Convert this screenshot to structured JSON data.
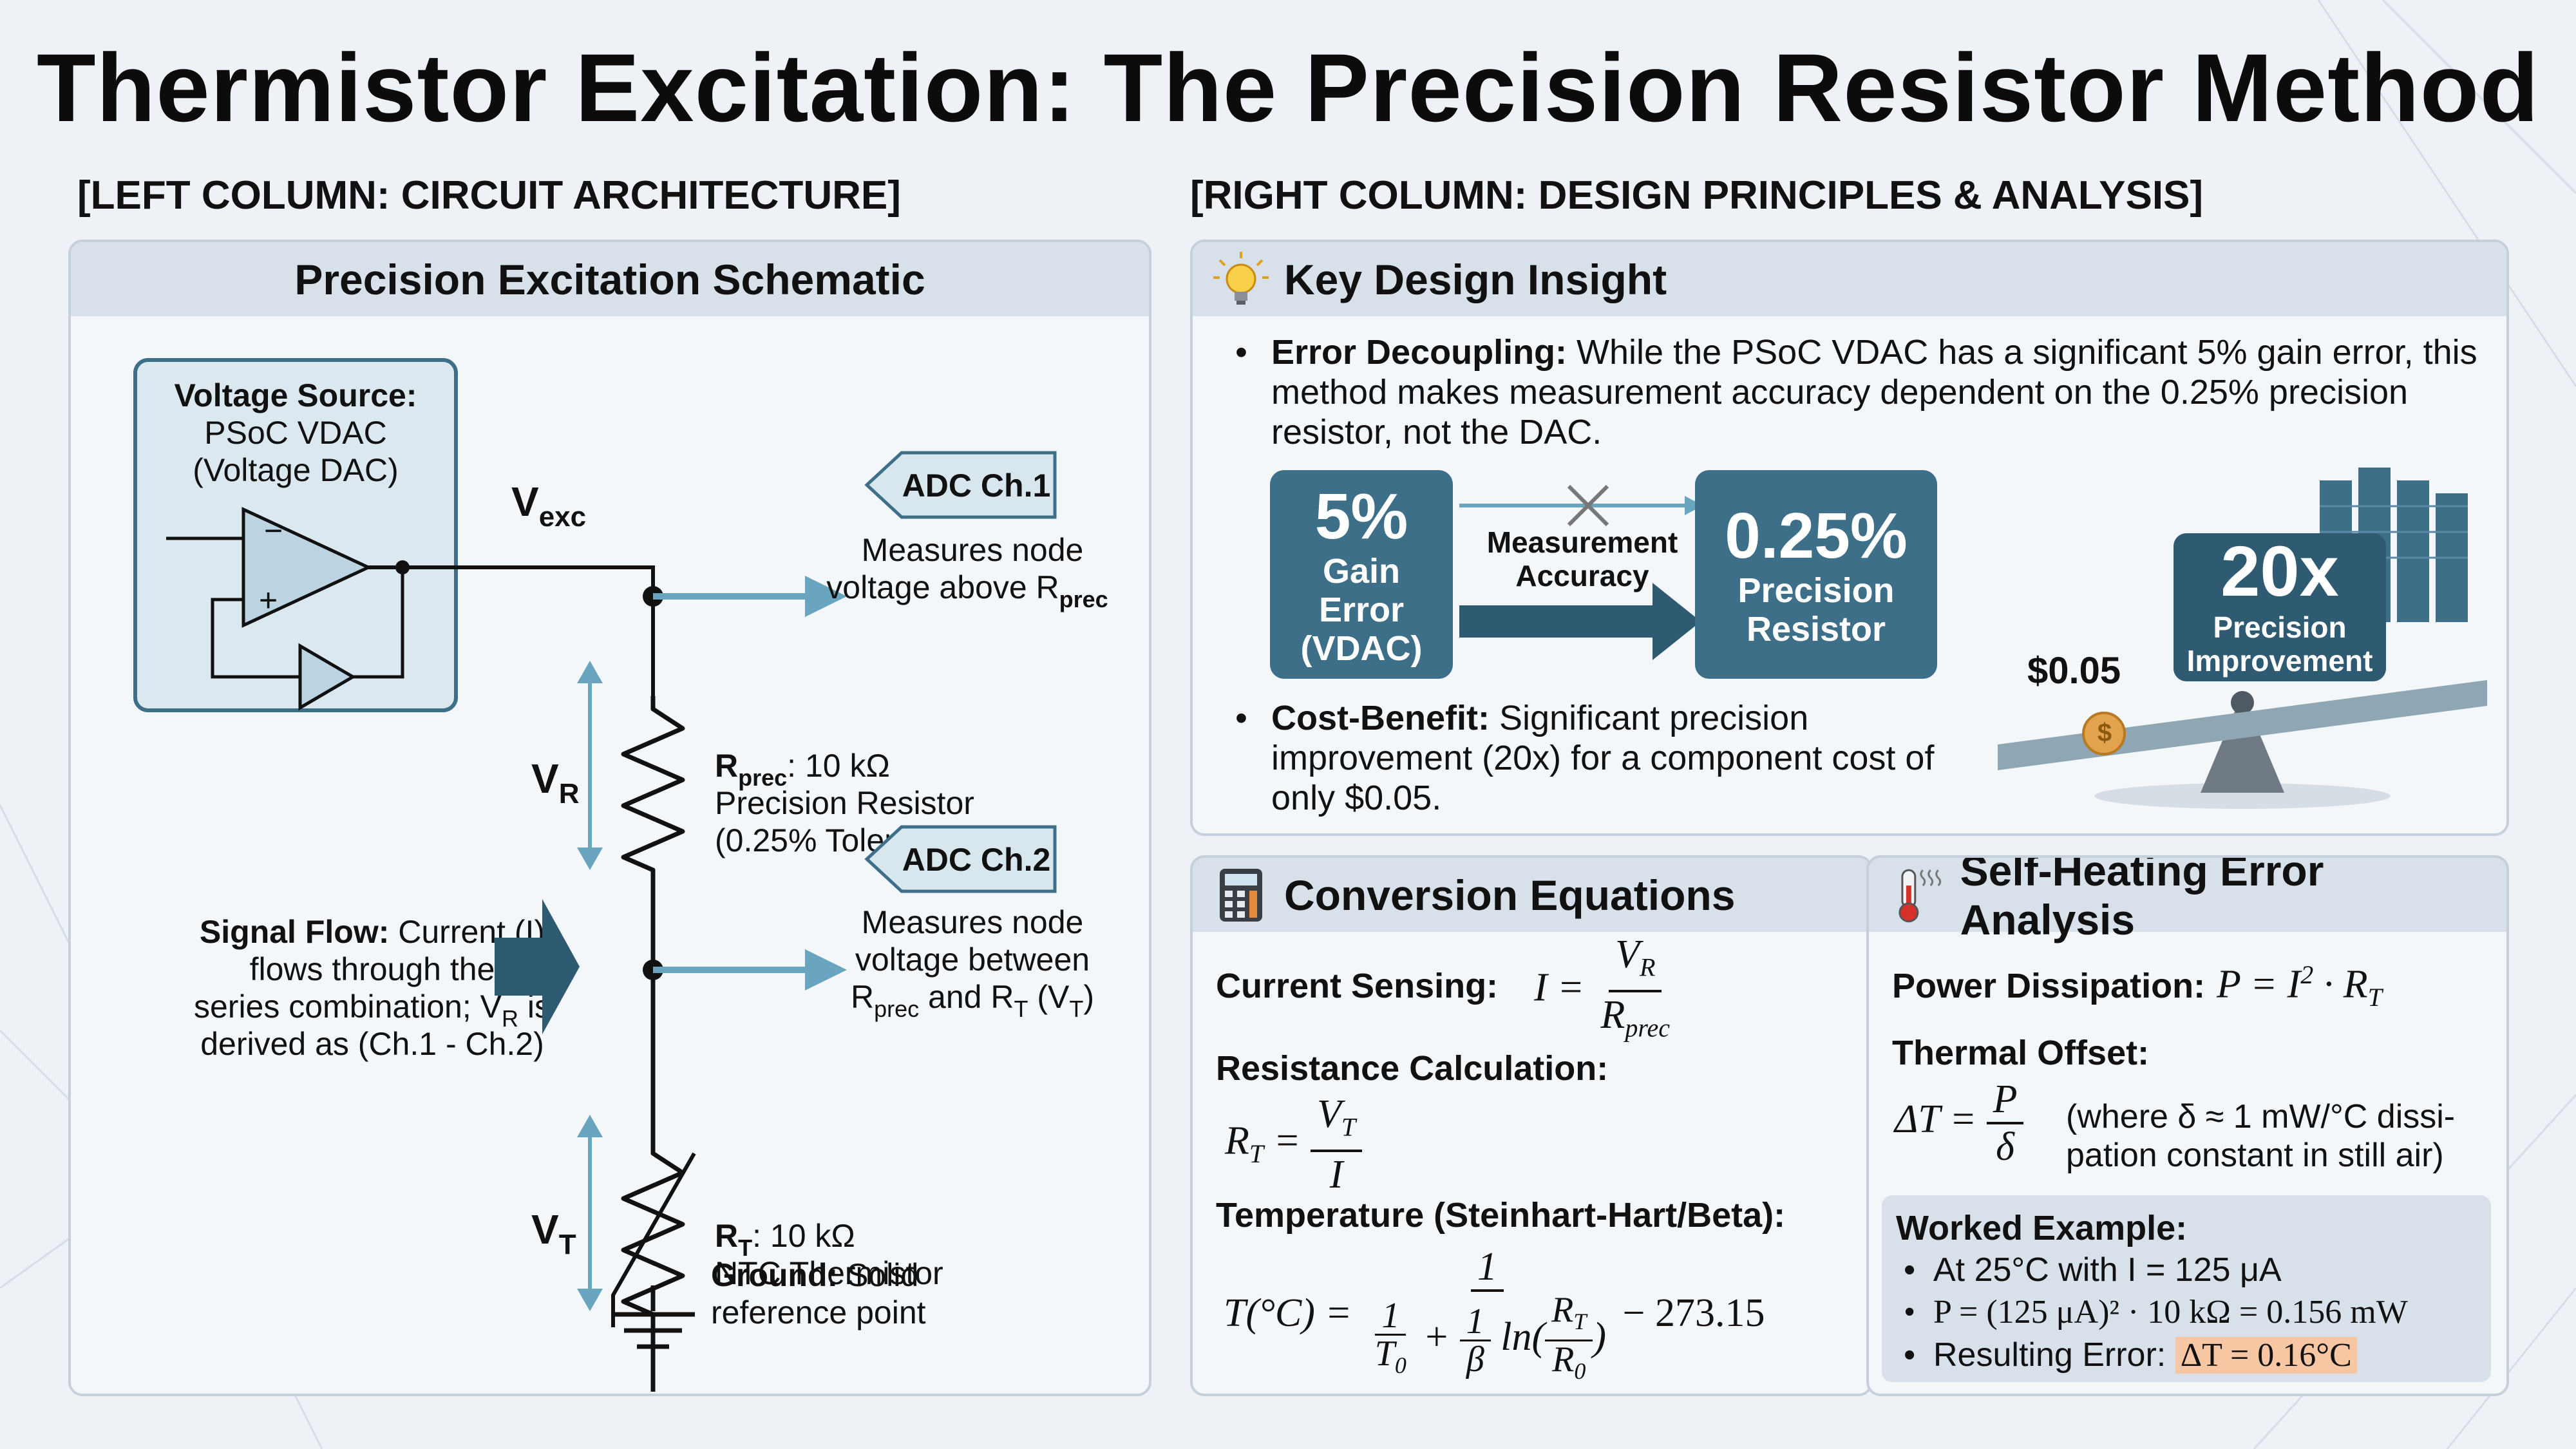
{
  "title": "Thermistor Excitation: The Precision Resistor Method",
  "left_column_heading": "[LEFT COLUMN: CIRCUIT ARCHITECTURE]",
  "right_column_heading": "[RIGHT COLUMN: DESIGN PRINCIPLES & ANALYSIS]",
  "schematic": {
    "panel_title": "Precision Excitation Schematic",
    "source_label_bold": "Voltage Source:",
    "source_line1": "PSoC VDAC",
    "source_line2": "(Voltage DAC)",
    "opamp_minus": "−",
    "opamp_plus": "+",
    "vexc_main": "V",
    "vexc_sub": "exc",
    "adc1_label": "ADC Ch.1",
    "adc1_desc1": "Measures node",
    "adc1_desc2_main": "voltage above R",
    "adc1_desc2_sub": "prec",
    "vr_main": "V",
    "vr_sub": "R",
    "rprec_main": "R",
    "rprec_sub": "prec",
    "rprec_value": ": 10 kΩ",
    "rprec_line2": "Precision Resistor",
    "rprec_line3": "(0.25% Tolerance)",
    "signal_bold": "Signal Flow:",
    "signal_line1_rest": " Current (I)",
    "signal_line2": "flows through the",
    "signal_line3_pre": "series combination; V",
    "signal_line3_sub": "R",
    "signal_line3_post": " is",
    "signal_line4": "derived as (Ch.1 - Ch.2)",
    "adc2_label": "ADC Ch.2",
    "adc2_desc1": "Measures node",
    "adc2_desc2": "voltage between",
    "adc2_desc3_a": "R",
    "adc2_desc3_a_sub": "prec",
    "adc2_desc3_b": " and R",
    "adc2_desc3_b_sub": "T",
    "adc2_desc3_c": " (V",
    "adc2_desc3_c_sub": "T",
    "adc2_desc3_d": ")",
    "vt_main": "V",
    "vt_sub": "T",
    "rt_main": "R",
    "rt_sub": "T",
    "rt_value": ": 10 kΩ",
    "rt_line2": "NTC Thermistor",
    "ground_bold": "Ground:",
    "ground_rest": " Solid",
    "ground_line2": "reference point"
  },
  "insight": {
    "panel_title": "Key Design Insight",
    "bullet1_bold": "Error Decoupling:",
    "bullet1_line1": " While the PSoC VDAC has a significant 5% gain error, this",
    "bullet1_line2": "method makes measurement accuracy dependent on the 0.25% precision",
    "bullet1_line3": "resistor, not the DAC.",
    "box1_big": "5%",
    "box1_l1": "Gain",
    "box1_l2": "Error",
    "box1_l3": "(VDAC)",
    "arrow_l1": "Measurement",
    "arrow_l2": "Accuracy",
    "box2_big": "0.25%",
    "box2_l1": "Precision",
    "box2_l2": "Resistor",
    "bullet2_bold": "Cost-Benefit:",
    "bullet2_line1": " Significant precision",
    "bullet2_line2": "improvement (20x) for a component cost of",
    "bullet2_line3": "only $0.05.",
    "cost_label": "$0.05",
    "coin_symbol": "$",
    "improve_big": "20x",
    "improve_l1": "Precision",
    "improve_l2": "Improvement"
  },
  "conversion": {
    "panel_title": "Conversion Equations",
    "current_label": "Current Sensing:",
    "resistance_label": "Resistance Calculation:",
    "temperature_label": "Temperature (Steinhart-Hart/Beta):",
    "temp_const": "− 273.15"
  },
  "selfheat": {
    "panel_title": "Self-Heating Error Analysis",
    "power_label": "Power Dissipation:",
    "thermal_label": "Thermal Offset:",
    "thermal_note1": "(where δ ≈ 1 mW/°C dissi-",
    "thermal_note2": "pation constant in still air)",
    "worked_title": "Worked Example:",
    "ex1": "At 25°C with I = 125 μA",
    "ex2": "P = (125 μA)² · 10 kΩ = 0.156 mW",
    "ex3_pre": "Resulting Error: ",
    "ex3_highlight": "ΔT = 0.16°C"
  },
  "colors": {
    "accent": "#3d6f89",
    "accent_dark": "#2e5a72",
    "arrow": "#6aa5bf",
    "highlight": "#f7c7a3",
    "panel_head": "#d8e1ea"
  }
}
